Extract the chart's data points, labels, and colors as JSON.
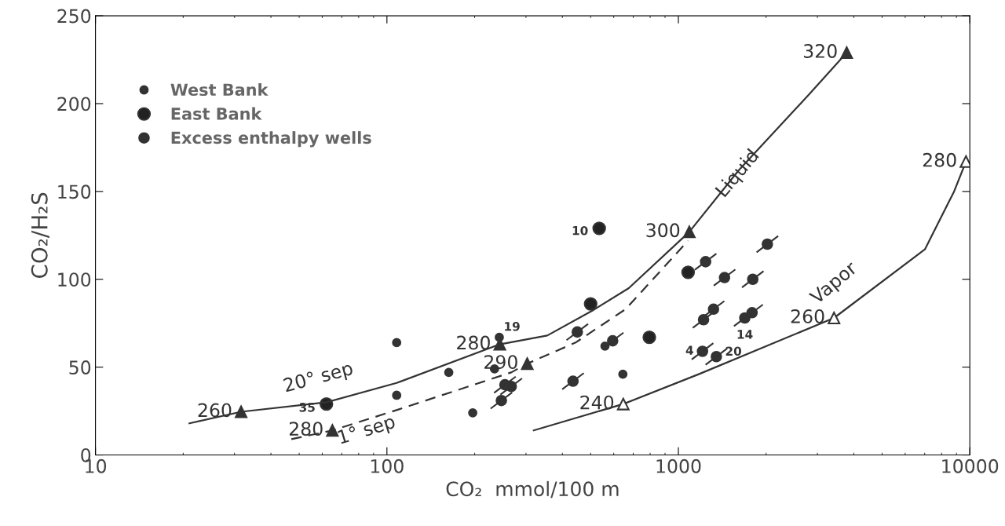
{
  "chart_data": {
    "type": "scatter",
    "xlabel": "CO₂  mmol/100 m",
    "ylabel": "CO₂/H₂S",
    "log": "x",
    "xlim": [
      10,
      10000
    ],
    "xticks": [
      10,
      100,
      1000,
      10000
    ],
    "ylim": [
      0,
      250
    ],
    "yticks": [
      0,
      50,
      100,
      150,
      200,
      250
    ],
    "grid": false,
    "legend": "top left",
    "series": [
      {
        "name": "West Bank",
        "marker": "circle",
        "color": "#333333",
        "x": [
          108,
          108,
          163,
          197,
          234,
          243,
          560,
          645
        ],
        "values": [
          64,
          34,
          47,
          24,
          49,
          67,
          62,
          46
        ]
      },
      {
        "name": "East Bank",
        "marker": "circle",
        "color": "#222222",
        "x": [
          62,
          535,
          500,
          795,
          1080
        ],
        "values": [
          29,
          129,
          86,
          67,
          104
        ]
      },
      {
        "name": "Excess enthalpy wells",
        "marker": "circle",
        "color": "#333333",
        "x": [
          247,
          267,
          254,
          435,
          450,
          595,
          1240,
          1440,
          2020,
          1800,
          1320,
          1220,
          1690,
          1790,
          1210,
          1350
        ],
        "values": [
          31,
          39,
          40,
          42,
          70,
          65,
          110,
          101,
          120,
          100,
          83,
          77,
          78,
          81,
          59,
          56
        ]
      },
      {
        "type": "line",
        "line_style": "solid",
        "marker": "none",
        "color": "#333333",
        "x": [
          21,
          31.6,
          62,
          108,
          244,
          355,
          505,
          676,
          1090,
          1610,
          2800,
          3780
        ],
        "values": [
          18,
          24.6,
          30,
          41,
          63,
          68,
          82,
          95,
          127,
          162,
          205,
          229
        ]
      },
      {
        "type": "line",
        "line_style": "dashed",
        "marker": "none",
        "color": "#333333",
        "x": [
          47,
          65,
          110,
          267,
          303,
          444,
          659,
          1080
        ],
        "values": [
          9,
          14,
          26,
          47,
          52,
          64,
          83,
          122
        ]
      },
      {
        "type": "line",
        "line_style": "solid",
        "marker": "none",
        "color": "#333333",
        "x": [
          319,
          647,
          1175,
          3420,
          7010,
          8830,
          9700
        ],
        "values": [
          14,
          29,
          46,
          78,
          117,
          150,
          167
        ]
      },
      {
        "marker": "triangle",
        "color": "#333333",
        "x": [
          31.6,
          244,
          1090,
          3780,
          65,
          303
        ],
        "values": [
          24.6,
          63,
          127,
          229,
          14,
          52
        ]
      },
      {
        "marker": "triangle",
        "color": "#ffffff",
        "x": [
          647,
          3420,
          9700
        ],
        "values": [
          29,
          78,
          167
        ]
      }
    ],
    "annotations": [
      {
        "text": "260",
        "x": 31.6,
        "y": 24.6
      },
      {
        "text": "280",
        "x": 244,
        "y": 63
      },
      {
        "text": "300",
        "x": 1090,
        "y": 127
      },
      {
        "text": "320",
        "x": 3780,
        "y": 229
      },
      {
        "text": "280",
        "x": 65,
        "y": 14
      },
      {
        "text": "290",
        "x": 303,
        "y": 52
      },
      {
        "text": "240",
        "x": 647,
        "y": 29
      },
      {
        "text": "260",
        "x": 3420,
        "y": 78
      },
      {
        "text": "280",
        "x": 9700,
        "y": 167
      },
      {
        "text": "35",
        "x": 62,
        "y": 29
      },
      {
        "text": "10",
        "x": 535,
        "y": 129
      },
      {
        "text": "19",
        "x": 243,
        "y": 67
      },
      {
        "text": "4",
        "x": 1210,
        "y": 59
      },
      {
        "text": "20",
        "x": 1350,
        "y": 56
      },
      {
        "text": "14",
        "x": 1690,
        "y": 78
      },
      "20° sep",
      "1° sep",
      "Liquid",
      "Vapor"
    ]
  }
}
